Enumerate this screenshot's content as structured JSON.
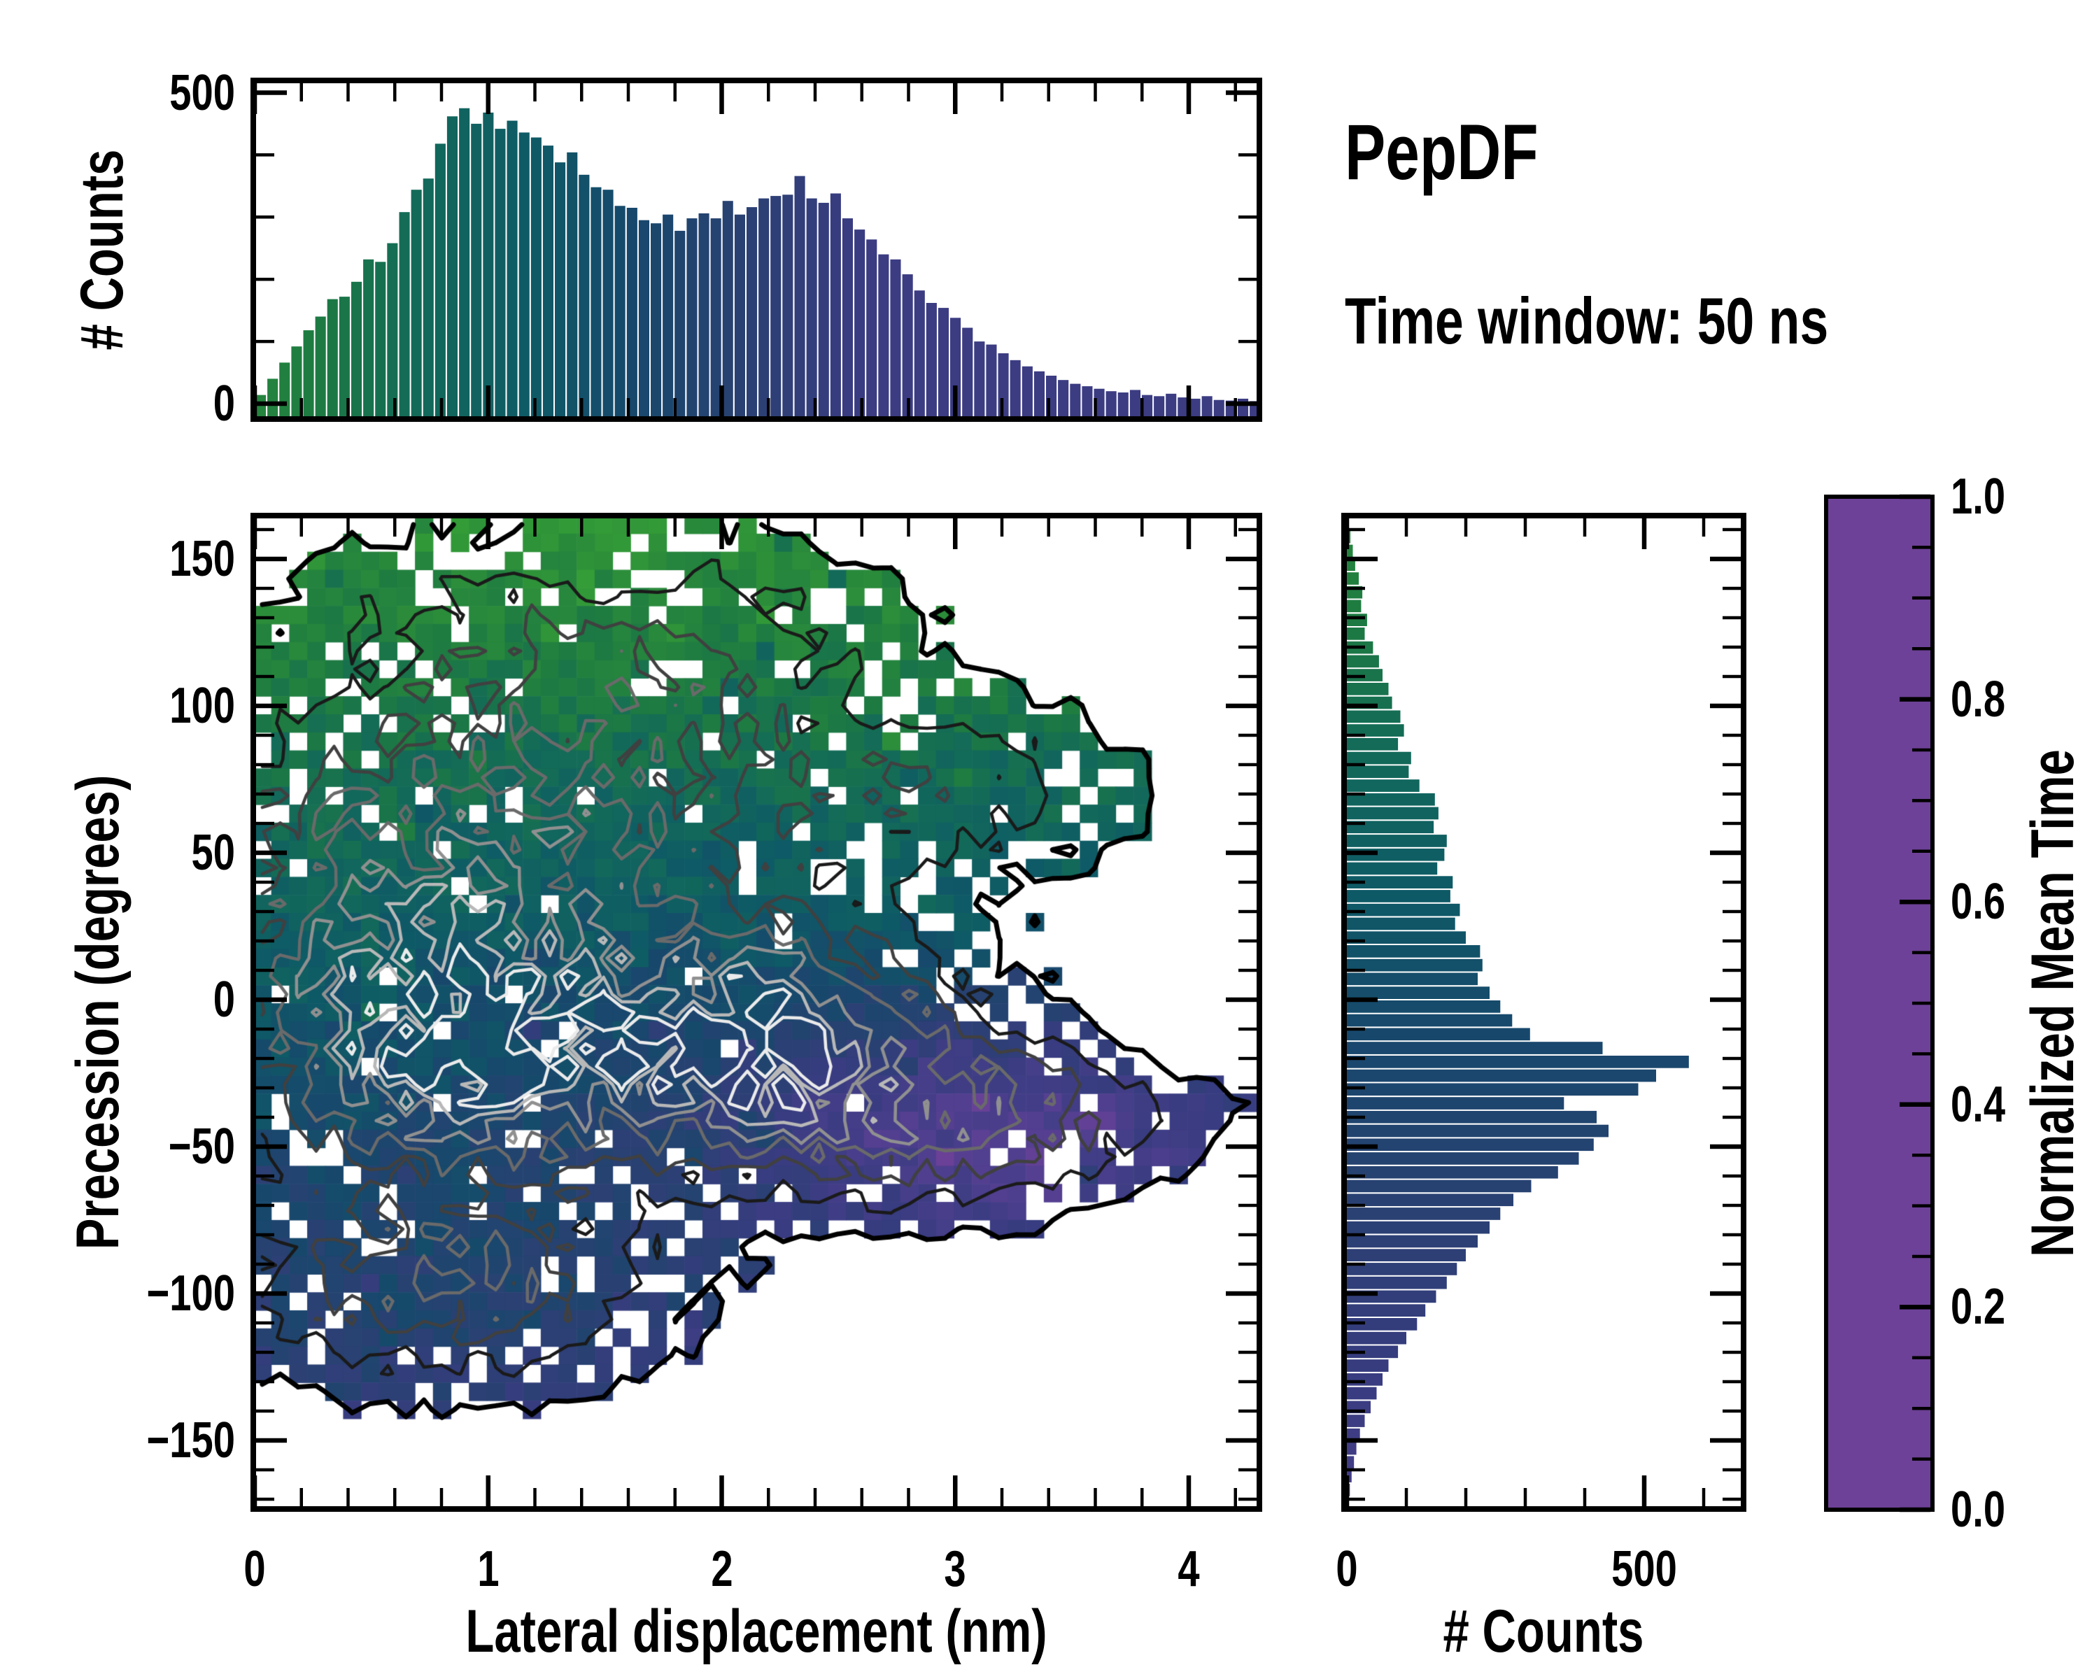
{
  "title": "PepDF",
  "subtitle": "Time window: 50 ns",
  "labels": {
    "main_xlabel": "Lateral displacement (nm)",
    "main_ylabel": "Precession (degrees)",
    "top_ylabel": "# Counts",
    "right_xlabel": "# Counts"
  },
  "colorbar": {
    "label": "Normalized Mean Time",
    "tick_labels": [
      "1.0",
      "0.8",
      "0.6",
      "0.4",
      "0.2",
      "0.0"
    ],
    "tick_values": [
      1.0,
      0.8,
      0.6,
      0.4,
      0.2,
      0.0
    ],
    "minor_step": 0.05,
    "range": [
      0,
      1
    ],
    "gradient_stops": [
      {
        "t": 0.0,
        "c": "#6d4197"
      },
      {
        "t": 0.1,
        "c": "#5c4094"
      },
      {
        "t": 0.2,
        "c": "#493e8b"
      },
      {
        "t": 0.3,
        "c": "#383c80"
      },
      {
        "t": 0.4,
        "c": "#294172"
      },
      {
        "t": 0.5,
        "c": "#17486c"
      },
      {
        "t": 0.6,
        "c": "#0e5a66"
      },
      {
        "t": 0.7,
        "c": "#12695a"
      },
      {
        "t": 0.8,
        "c": "#1d7a42"
      },
      {
        "t": 0.9,
        "c": "#2b8c3a"
      },
      {
        "t": 1.0,
        "c": "#36a136"
      }
    ]
  },
  "chart_data": [
    {
      "id": "top_histogram",
      "type": "bar",
      "orientation": "vertical",
      "ylabel": "# Counts",
      "xlim": [
        0,
        4.31
      ],
      "ylim": [
        -26,
        519
      ],
      "ytick_labels": [
        "500",
        "0"
      ],
      "ytick_values": [
        500,
        0
      ],
      "y_minor_step": 100,
      "x_start": 0,
      "bin_width": 0.0513,
      "counts": [
        14,
        40,
        66,
        92,
        118,
        140,
        168,
        172,
        196,
        232,
        228,
        258,
        308,
        344,
        362,
        418,
        462,
        475,
        450,
        468,
        442,
        455,
        436,
        428,
        415,
        388,
        404,
        368,
        348,
        344,
        318,
        315,
        295,
        290,
        304,
        278,
        298,
        306,
        298,
        326,
        304,
        316,
        330,
        334,
        336,
        366,
        330,
        323,
        338,
        298,
        280,
        264,
        240,
        232,
        208,
        182,
        162,
        154,
        138,
        122,
        100,
        95,
        81,
        70,
        60,
        52,
        45,
        38,
        32,
        28,
        24,
        20,
        18,
        22,
        14,
        12,
        16,
        10,
        8,
        12,
        6,
        5,
        8,
        4
      ],
      "color_rule": "bar color = colormap(mean time of column)",
      "color_value_at_x0": 0.86,
      "color_value_slope": -0.2218,
      "color_value_min": 0.28
    },
    {
      "id": "precession_vs_displacement_heatmap",
      "type": "heatmap",
      "xlabel": "Lateral displacement (nm)",
      "ylabel": "Precession (degrees)",
      "value_label": "Normalized Mean Time",
      "xlim": [
        0,
        4.31
      ],
      "ylim": [
        -173,
        165
      ],
      "xtick_labels": [
        "0",
        "1",
        "2",
        "3",
        "4"
      ],
      "xtick_values": [
        0,
        1,
        2,
        3,
        4
      ],
      "x_minor_step": 0.2,
      "ytick_labels": [
        "150",
        "100",
        "50",
        "0",
        "−50",
        "−100",
        "−150"
      ],
      "ytick_values": [
        150,
        100,
        50,
        0,
        -50,
        -100,
        -150
      ],
      "y_minor_step": 10,
      "grid": {
        "nx": 56,
        "ny": 55
      },
      "seed": 7,
      "density_blobs": [
        [
          1.0,
          0.95,
          -12,
          0.62,
          38
        ],
        [
          0.92,
          2.15,
          -16,
          0.72,
          36
        ],
        [
          0.45,
          1.15,
          55,
          1.05,
          45
        ],
        [
          0.3,
          1.6,
          118,
          0.95,
          36
        ],
        [
          0.38,
          3.05,
          -40,
          0.62,
          27
        ],
        [
          0.42,
          0.85,
          -95,
          0.78,
          30
        ],
        [
          0.25,
          0.28,
          10,
          0.48,
          70
        ],
        [
          0.12,
          3.65,
          -40,
          0.5,
          16
        ],
        [
          0.07,
          0.5,
          143,
          0.38,
          14
        ],
        [
          0.22,
          2.9,
          72,
          0.75,
          28
        ],
        [
          -0.07,
          1.55,
          138,
          0.3,
          18
        ]
      ],
      "mean_time_field": {
        "base_at_zero": 0.53,
        "slope_pos": 0.002424,
        "slope_neg": 0.001734,
        "purple_pocket": {
          "amp": -0.3,
          "cx": 3.2,
          "sx": 1.1,
          "cy": -42,
          "sy": 38
        },
        "bottomleft_boost": {
          "amp": 0.1,
          "cx": 0.75,
          "sx": 0.9,
          "cy": -105,
          "sy": 50
        },
        "left_green_boost": {
          "amp": 0.06,
          "cx": 0.35,
          "sx": 0.5,
          "cy": 10,
          "sy": 60
        },
        "noise_amp": 0.12
      },
      "occupancy": {
        "threshold": 0.045,
        "threshold_jitter": 0.6,
        "density_noise": 0.6,
        "dropout_base": 0.42,
        "dropout_slope": 0.9,
        "dropout_min": 0.05
      },
      "contours": {
        "levels": [
          0.045,
          0.17,
          0.3,
          0.44,
          0.6,
          0.76,
          0.92
        ],
        "colors": [
          "#000000",
          "#1a1a1a",
          "#404040",
          "#6a6a6a",
          "#909090",
          "#b8b8b8",
          "#ebebeb"
        ],
        "widths": [
          7,
          4.5,
          4.5,
          4.5,
          4.5,
          4.5,
          4.5
        ],
        "occupied_bonus": 0.022,
        "field_noise": 0.7
      }
    },
    {
      "id": "right_histogram",
      "type": "bar",
      "orientation": "horizontal",
      "xlabel": "# Counts",
      "xlim": [
        -18,
        667
      ],
      "xtick_labels": [
        "0",
        "500"
      ],
      "xtick_values": [
        0,
        500
      ],
      "x_minor_step": 100,
      "ylim": [
        -173,
        165
      ],
      "y_start": 164.5,
      "bin_height": 4.7,
      "counts": [
        3,
        6,
        10,
        14,
        20,
        26,
        24,
        34,
        30,
        44,
        54,
        60,
        70,
        76,
        90,
        96,
        86,
        108,
        104,
        122,
        148,
        154,
        146,
        168,
        164,
        152,
        178,
        174,
        190,
        182,
        200,
        224,
        228,
        220,
        240,
        258,
        278,
        308,
        430,
        575,
        520,
        490,
        365,
        420,
        440,
        415,
        390,
        355,
        310,
        280,
        258,
        240,
        220,
        200,
        185,
        168,
        150,
        132,
        118,
        100,
        86,
        70,
        60,
        50,
        40,
        30,
        22,
        16,
        12,
        8,
        5,
        3
      ],
      "color_rule": "bar color = colormap(mean time of row)",
      "color_value_at_y0": 0.52,
      "color_slope_pos": 0.00218,
      "color_slope_neg": 0.001734
    }
  ]
}
